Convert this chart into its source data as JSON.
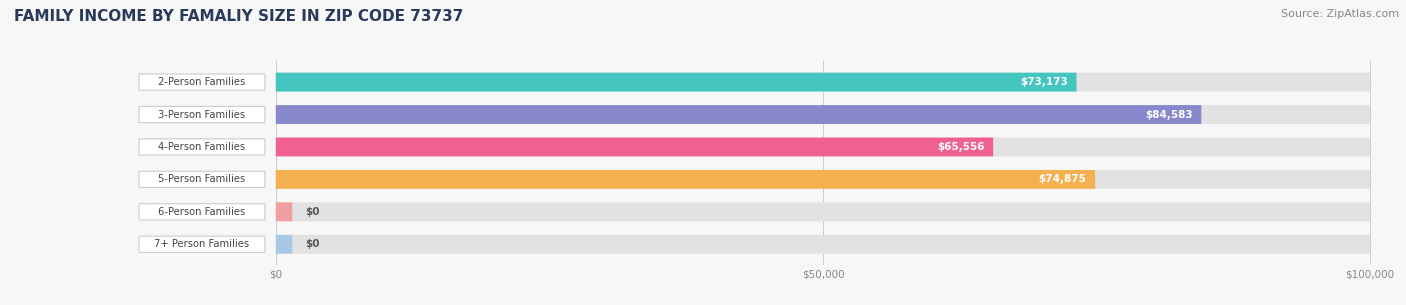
{
  "title": "FAMILY INCOME BY FAMALIY SIZE IN ZIP CODE 73737",
  "source": "Source: ZipAtlas.com",
  "categories": [
    "2-Person Families",
    "3-Person Families",
    "4-Person Families",
    "5-Person Families",
    "6-Person Families",
    "7+ Person Families"
  ],
  "values": [
    73173,
    84583,
    65556,
    74875,
    0,
    0
  ],
  "labels": [
    "$73,173",
    "$84,583",
    "$65,556",
    "$74,875",
    "$0",
    "$0"
  ],
  "bar_colors": [
    "#45c5c0",
    "#8888cc",
    "#f06090",
    "#f5b050",
    "#f0a0a0",
    "#a8c8e8"
  ],
  "xlim_max": 100000,
  "xticks": [
    0,
    50000,
    100000
  ],
  "xtick_labels": [
    "$0",
    "$50,000",
    "$100,000"
  ],
  "background_color": "#f7f7f7",
  "bar_bg_color": "#e2e2e2",
  "title_color": "#2a3a5a",
  "title_fontsize": 11,
  "source_fontsize": 8,
  "bar_height": 0.58,
  "label_bg_color": "white"
}
